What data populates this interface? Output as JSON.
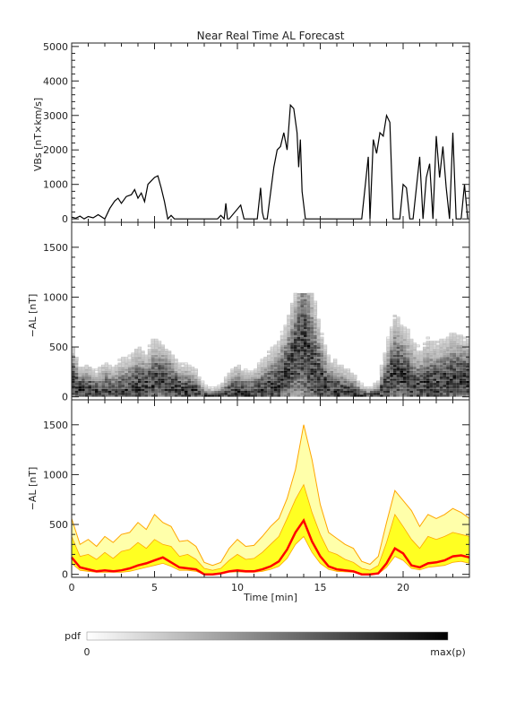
{
  "colors": {
    "background": "#ffffff",
    "axis": "#222222",
    "vbs_line": "#000000",
    "pdf_low": "#ffffff",
    "pdf_high": "#000000",
    "band_fill": "#ffff22",
    "band_outer": "#ffa500",
    "median_line": "#ff0000"
  },
  "chart_data": [
    {
      "type": "line",
      "title": "Near Real Time AL Forecast",
      "ylabel": "VBs [nT×km/s]",
      "xlim": [
        0,
        24
      ],
      "ylim": [
        -100,
        5100
      ],
      "yticks": [
        0,
        1000,
        2000,
        3000,
        4000,
        5000
      ],
      "ytick_labels": [
        "0",
        "1000",
        "2000",
        "3000",
        "4000",
        "5000"
      ],
      "series": [
        {
          "x": [
            0,
            0.25,
            0.5,
            0.75,
            1,
            1.3,
            1.6,
            2,
            2.3,
            2.6,
            2.8,
            3,
            3.3,
            3.6,
            3.8,
            4,
            4.2,
            4.4,
            4.6,
            4.8,
            5,
            5.2,
            5.4,
            5.6,
            5.8,
            6,
            6.2,
            6.5,
            8.8,
            9,
            9.2,
            9.3,
            9.4,
            9.5,
            10.2,
            10.4,
            11.2,
            11.4,
            11.5,
            11.6,
            11.8,
            12.2,
            12.4,
            12.6,
            12.8,
            13,
            13.2,
            13.4,
            13.6,
            13.7,
            13.8,
            13.9,
            14.1,
            14.3,
            14.5,
            14.7,
            15,
            17.5,
            17.9,
            18,
            18.2,
            18.4,
            18.6,
            18.8,
            19,
            19.2,
            19.4,
            19.6,
            19.8,
            20,
            20.2,
            20.4,
            20.6,
            21,
            21.2,
            21.4,
            21.6,
            21.8,
            22,
            22.2,
            22.4,
            22.6,
            22.8,
            23,
            23.2,
            23.5,
            23.7,
            23.9
          ],
          "y": [
            50,
            20,
            80,
            0,
            70,
            30,
            120,
            0,
            300,
            520,
            600,
            450,
            650,
            700,
            850,
            600,
            750,
            500,
            1000,
            1100,
            1200,
            1250,
            900,
            500,
            0,
            100,
            0,
            0,
            0,
            100,
            0,
            450,
            0,
            0,
            400,
            0,
            0,
            900,
            200,
            0,
            0,
            1500,
            2000,
            2100,
            2500,
            2000,
            3300,
            3200,
            2500,
            1500,
            2300,
            800,
            0,
            0,
            0,
            0,
            0,
            0,
            1800,
            0,
            2300,
            1900,
            2500,
            2400,
            3000,
            2800,
            0,
            0,
            0,
            1000,
            900,
            0,
            0,
            1800,
            0,
            1200,
            1600,
            0,
            2400,
            1200,
            2100,
            900,
            0,
            2500,
            0,
            0,
            1000,
            0
          ]
        }
      ]
    },
    {
      "type": "heatmap",
      "ylabel": "−AL [nT]",
      "xlim": [
        0,
        24
      ],
      "ylim": [
        -30,
        1750
      ],
      "yticks": [
        0,
        500,
        1000,
        1500
      ],
      "ytick_labels": [
        "0",
        "500",
        "1000",
        "1500"
      ],
      "colorbar": {
        "label": "pdf",
        "min_label": "0",
        "max_label": "max(p)"
      }
    },
    {
      "type": "area",
      "ylabel": "−AL [nT]",
      "xlabel": "Time [min]",
      "xlim": [
        0,
        24
      ],
      "ylim": [
        -30,
        1750
      ],
      "yticks": [
        0,
        500,
        1000,
        1500
      ],
      "ytick_labels": [
        "0",
        "500",
        "1000",
        "1500"
      ],
      "xticks": [
        0,
        5,
        10,
        15,
        20
      ],
      "xtick_labels": [
        "0",
        "5",
        "10",
        "15",
        "20"
      ],
      "x": [
        0,
        0.5,
        1,
        1.5,
        2,
        2.5,
        3,
        3.5,
        4,
        4.5,
        5,
        5.5,
        6,
        6.5,
        7,
        7.5,
        8,
        8.5,
        9,
        9.5,
        10,
        10.5,
        11,
        11.5,
        12,
        12.5,
        13,
        13.5,
        14,
        14.5,
        15,
        15.5,
        16,
        16.5,
        17,
        17.5,
        18,
        18.5,
        19,
        19.5,
        20,
        20.5,
        21,
        21.5,
        22,
        22.5,
        23,
        23.5,
        24
      ],
      "series": [
        {
          "name": "",
          "values": [
            170,
            70,
            50,
            30,
            40,
            30,
            40,
            60,
            90,
            110,
            140,
            170,
            120,
            70,
            60,
            50,
            0,
            0,
            10,
            30,
            40,
            30,
            30,
            50,
            80,
            130,
            250,
            420,
            540,
            330,
            180,
            80,
            50,
            40,
            30,
            0,
            0,
            10,
            110,
            260,
            210,
            90,
            70,
            110,
            120,
            140,
            180,
            190,
            170
          ]
        },
        {
          "name": "",
          "values": [
            110,
            40,
            30,
            20,
            20,
            20,
            20,
            30,
            50,
            70,
            90,
            110,
            80,
            40,
            40,
            30,
            0,
            0,
            5,
            20,
            25,
            20,
            20,
            30,
            50,
            80,
            160,
            300,
            380,
            220,
            110,
            50,
            30,
            25,
            20,
            0,
            0,
            5,
            70,
            180,
            140,
            60,
            45,
            70,
            80,
            90,
            120,
            130,
            110
          ]
        },
        {
          "name": "",
          "values": [
            380,
            180,
            200,
            150,
            220,
            160,
            230,
            250,
            320,
            260,
            350,
            300,
            280,
            180,
            200,
            150,
            60,
            40,
            60,
            140,
            200,
            150,
            160,
            220,
            300,
            380,
            560,
            750,
            900,
            620,
            400,
            230,
            200,
            150,
            120,
            60,
            40,
            90,
            320,
            600,
            480,
            350,
            260,
            380,
            350,
            380,
            420,
            400,
            380
          ]
        },
        {
          "name": "",
          "values": [
            560,
            300,
            350,
            280,
            380,
            320,
            400,
            420,
            520,
            450,
            600,
            520,
            480,
            330,
            340,
            280,
            120,
            90,
            120,
            260,
            350,
            280,
            290,
            380,
            480,
            560,
            760,
            1050,
            1500,
            1150,
            700,
            420,
            360,
            300,
            260,
            130,
            100,
            180,
            520,
            840,
            740,
            640,
            480,
            600,
            560,
            600,
            660,
            620,
            560
          ]
        }
      ]
    }
  ]
}
